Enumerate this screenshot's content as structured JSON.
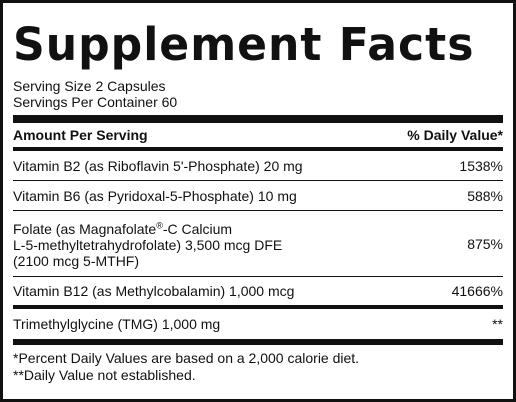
{
  "title": "Supplement Facts",
  "serving_size": "Serving Size 2 Capsules",
  "servings_per_container": "Servings Per Container 60",
  "header": {
    "amount_label": "Amount Per Serving",
    "dv_label": "% Daily Value*"
  },
  "rows": [
    {
      "name": "Vitamin B2 (as Riboflavin 5'-Phosphate) 20 mg",
      "dv": "1538%"
    },
    {
      "name": "Vitamin B6 (as Pyridoxal-5-Phosphate) 10 mg",
      "dv": "588%"
    },
    {
      "name_line1_a": "Folate (as Magnafolate",
      "name_line1_sup": "®",
      "name_line1_b": "-C Calcium",
      "name_line2": "L-5-methyltetrahydrofolate) 3,500 mcg DFE",
      "name_line3": "(2100 mcg 5-MTHF)",
      "dv": "875%"
    },
    {
      "name": "Vitamin B12 (as Methylcobalamin) 1,000 mcg",
      "dv": "41666%"
    },
    {
      "name": "Trimethylglycine (TMG) 1,000 mg",
      "dv": "**"
    }
  ],
  "footnotes": [
    "*Percent Daily Values are based on a 2,000 calorie diet.",
    "**Daily Value not established."
  ]
}
